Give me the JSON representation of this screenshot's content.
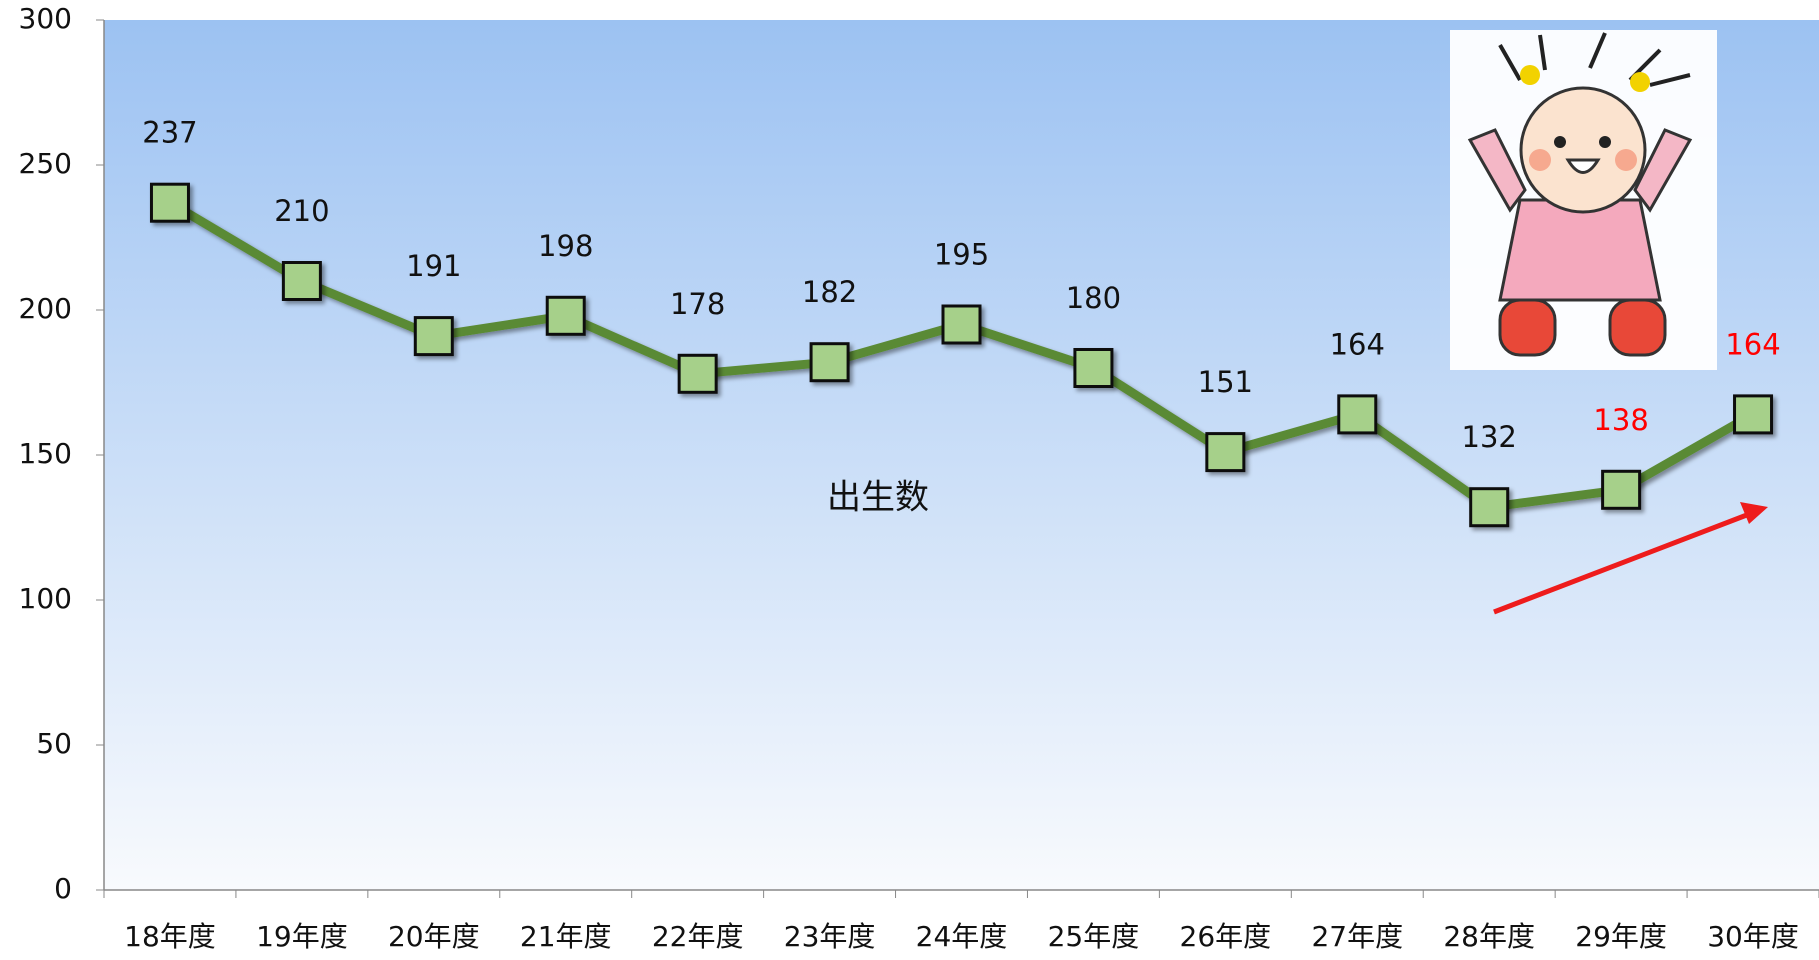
{
  "chart_data": {
    "type": "line",
    "categories": [
      "18年度",
      "19年度",
      "20年度",
      "21年度",
      "22年度",
      "23年度",
      "24年度",
      "25年度",
      "26年度",
      "27年度",
      "28年度",
      "29年度",
      "30年度"
    ],
    "series": [
      {
        "name": "出生数",
        "color": "#5a8a35",
        "marker_color": "#a6d08a",
        "values": [
          237,
          210,
          191,
          198,
          178,
          182,
          195,
          180,
          151,
          164,
          132,
          138,
          164
        ],
        "label_colors": [
          "#111111",
          "#111111",
          "#111111",
          "#111111",
          "#111111",
          "#111111",
          "#111111",
          "#111111",
          "#111111",
          "#111111",
          "#111111",
          "#ff0000",
          "#ff0000"
        ]
      }
    ],
    "ylim": [
      0,
      300
    ],
    "yticks": [
      0,
      50,
      100,
      150,
      200,
      250,
      300
    ]
  }
}
